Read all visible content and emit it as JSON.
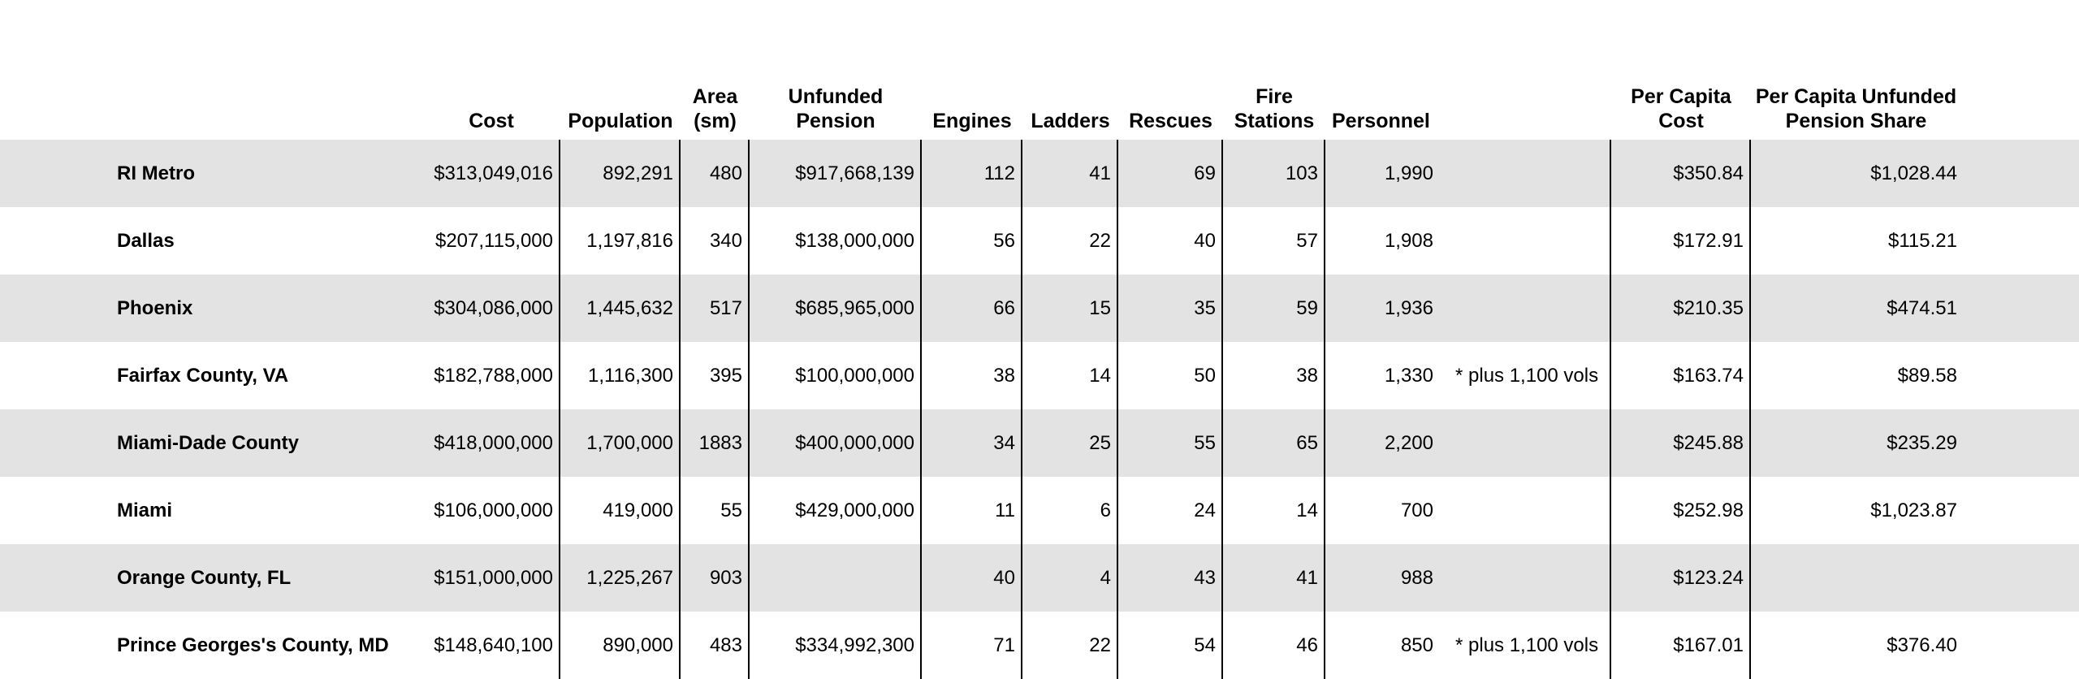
{
  "styles": {
    "stripe_color": "#e3e3e3",
    "border_color": "#000000",
    "text_color": "#000000",
    "bg_color": "#ffffff"
  },
  "table": {
    "headers": {
      "name": "",
      "cost": "Cost",
      "population": "Population",
      "area": "Area\n(sm)",
      "unfunded_pension": "Unfunded\nPension",
      "engines": "Engines",
      "ladders": "Ladders",
      "rescues": "Rescues",
      "fire_stations": "Fire\nStations",
      "personnel": "Personnel",
      "per_capita_cost": "Per Capita\nCost",
      "per_capita_unfunded_pension_share": "Per Capita Unfunded\nPension Share"
    }
  },
  "chart_data": {
    "type": "table",
    "columns": [
      "",
      "Cost",
      "Population",
      "Area (sm)",
      "Unfunded Pension",
      "Engines",
      "Ladders",
      "Rescues",
      "Fire Stations",
      "Personnel",
      "Per Capita Cost",
      "Per Capita Unfunded Pension Share"
    ],
    "rows": [
      {
        "name": "RI Metro",
        "cost": "$313,049,016",
        "population": "892,291",
        "area": "480",
        "unfunded_pension": "$917,668,139",
        "engines": "112",
        "ladders": "41",
        "rescues": "69",
        "fire_stations": "103",
        "personnel": "1,990",
        "personnel_note": "",
        "per_capita_cost": "$350.84",
        "per_capita_unfunded_pension_share": "$1,028.44"
      },
      {
        "name": "Dallas",
        "cost": "$207,115,000",
        "population": "1,197,816",
        "area": "340",
        "unfunded_pension": "$138,000,000",
        "engines": "56",
        "ladders": "22",
        "rescues": "40",
        "fire_stations": "57",
        "personnel": "1,908",
        "personnel_note": "",
        "per_capita_cost": "$172.91",
        "per_capita_unfunded_pension_share": "$115.21"
      },
      {
        "name": "Phoenix",
        "cost": "$304,086,000",
        "population": "1,445,632",
        "area": "517",
        "unfunded_pension": "$685,965,000",
        "engines": "66",
        "ladders": "15",
        "rescues": "35",
        "fire_stations": "59",
        "personnel": "1,936",
        "personnel_note": "",
        "per_capita_cost": "$210.35",
        "per_capita_unfunded_pension_share": "$474.51"
      },
      {
        "name": "Fairfax County, VA",
        "cost": "$182,788,000",
        "population": "1,116,300",
        "area": "395",
        "unfunded_pension": "$100,000,000",
        "engines": "38",
        "ladders": "14",
        "rescues": "50",
        "fire_stations": "38",
        "personnel": "1,330",
        "personnel_note": "* plus 1,100 vols",
        "per_capita_cost": "$163.74",
        "per_capita_unfunded_pension_share": "$89.58"
      },
      {
        "name": "Miami-Dade County",
        "cost": "$418,000,000",
        "population": "1,700,000",
        "area": "1883",
        "unfunded_pension": "$400,000,000",
        "engines": "34",
        "ladders": "25",
        "rescues": "55",
        "fire_stations": "65",
        "personnel": "2,200",
        "personnel_note": "",
        "per_capita_cost": "$245.88",
        "per_capita_unfunded_pension_share": "$235.29"
      },
      {
        "name": "Miami",
        "cost": "$106,000,000",
        "population": "419,000",
        "area": "55",
        "unfunded_pension": "$429,000,000",
        "engines": "11",
        "ladders": "6",
        "rescues": "24",
        "fire_stations": "14",
        "personnel": "700",
        "personnel_note": "",
        "per_capita_cost": "$252.98",
        "per_capita_unfunded_pension_share": "$1,023.87"
      },
      {
        "name": "Orange County, FL",
        "cost": "$151,000,000",
        "population": "1,225,267",
        "area": "903",
        "unfunded_pension": "",
        "engines": "40",
        "ladders": "4",
        "rescues": "43",
        "fire_stations": "41",
        "personnel": "988",
        "personnel_note": "",
        "per_capita_cost": "$123.24",
        "per_capita_unfunded_pension_share": ""
      },
      {
        "name": "Prince Georges's County, MD",
        "cost": "$148,640,100",
        "population": "890,000",
        "area": "483",
        "unfunded_pension": "$334,992,300",
        "engines": "71",
        "ladders": "22",
        "rescues": "54",
        "fire_stations": "46",
        "personnel": "850",
        "personnel_note": "* plus 1,100 vols",
        "per_capita_cost": "$167.01",
        "per_capita_unfunded_pension_share": "$376.40"
      }
    ]
  }
}
